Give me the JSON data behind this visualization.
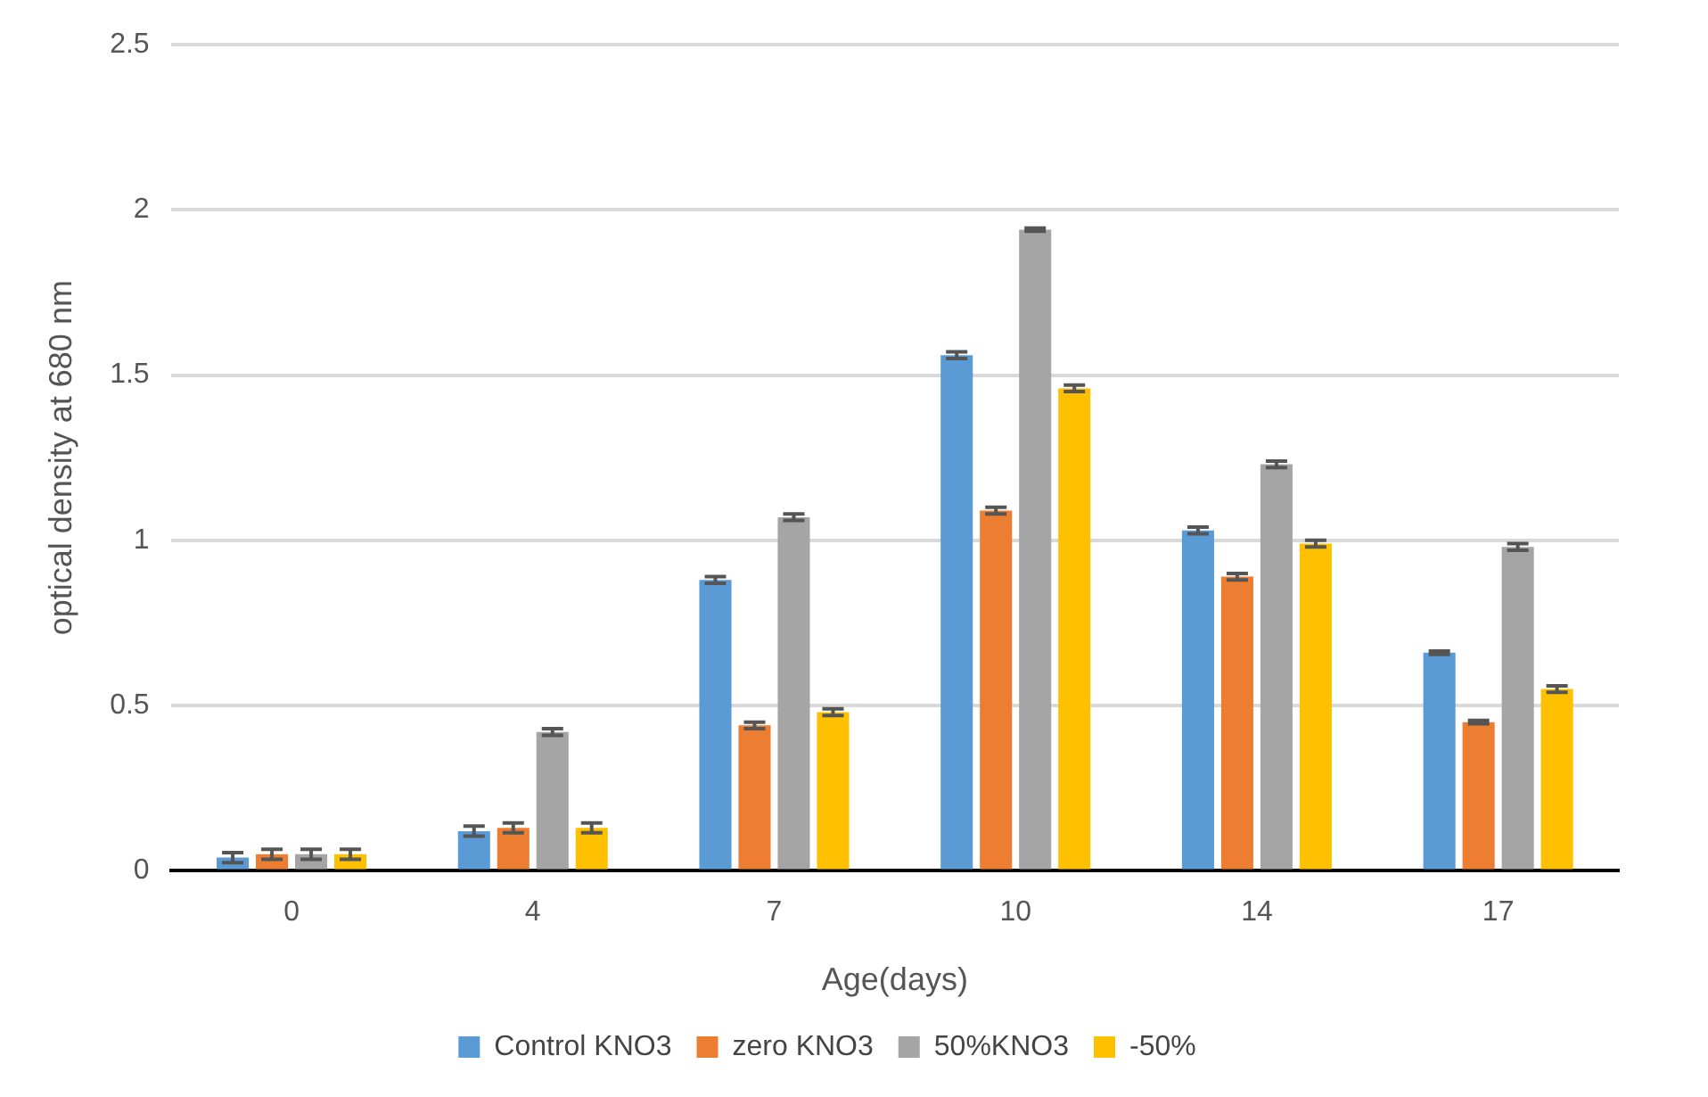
{
  "chart_data": {
    "type": "bar",
    "xlabel": "Age(days)",
    "ylabel": "optical density at 680 nm",
    "categories": [
      "0",
      "4",
      "7",
      "10",
      "14",
      "17"
    ],
    "series": [
      {
        "name": "Control KNO3",
        "color": "#5b9bd5",
        "values": [
          0.04,
          0.12,
          0.88,
          1.56,
          1.03,
          0.66
        ],
        "errors": [
          0.015,
          0.015,
          0.01,
          0.01,
          0.01,
          0.005
        ]
      },
      {
        "name": "zero KNO3",
        "color": "#ed7d31",
        "values": [
          0.05,
          0.13,
          0.44,
          1.09,
          0.89,
          0.45
        ],
        "errors": [
          0.015,
          0.015,
          0.01,
          0.01,
          0.01,
          0.005
        ]
      },
      {
        "name": "50%KNO3",
        "color": "#a5a5a5",
        "values": [
          0.05,
          0.42,
          1.07,
          1.94,
          1.23,
          0.98
        ],
        "errors": [
          0.015,
          0.01,
          0.01,
          0.005,
          0.01,
          0.01
        ]
      },
      {
        "name": "-50%",
        "color": "#ffc000",
        "values": [
          0.05,
          0.13,
          0.48,
          1.46,
          0.99,
          0.55
        ],
        "errors": [
          0.015,
          0.015,
          0.01,
          0.01,
          0.01,
          0.01
        ]
      }
    ],
    "ylim": [
      0,
      2.5
    ],
    "yticks": [
      0,
      0.5,
      1,
      1.5,
      2,
      2.5
    ],
    "grid": "y",
    "legend": "bottom"
  }
}
